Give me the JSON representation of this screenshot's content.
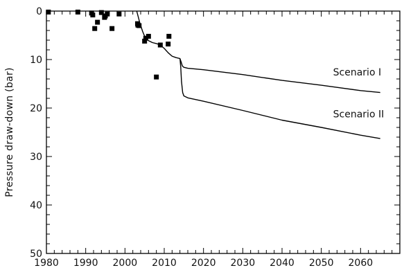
{
  "chart_data": {
    "type": "line",
    "title": "",
    "xlabel": "",
    "ylabel": "Pressure draw-down (bar)",
    "xlim": [
      1980,
      2070
    ],
    "ylim": [
      0,
      50
    ],
    "y_inverted": true,
    "grid": false,
    "x_ticks": [
      1980,
      1990,
      2000,
      2010,
      2020,
      2030,
      2040,
      2050,
      2060
    ],
    "y_ticks": [
      0,
      10,
      20,
      30,
      40,
      50
    ],
    "observations": {
      "marker": "square",
      "points": [
        [
          1980.5,
          0.2
        ],
        [
          1988,
          0.2
        ],
        [
          1991.5,
          0.4
        ],
        [
          1991.8,
          0.8
        ],
        [
          1992.3,
          3.6
        ],
        [
          1993,
          2.3
        ],
        [
          1994,
          0.3
        ],
        [
          1994.8,
          1.3
        ],
        [
          1995,
          1.0
        ],
        [
          1995.5,
          0.6
        ],
        [
          1996.7,
          3.6
        ],
        [
          1998.5,
          0.6
        ],
        [
          2003.2,
          2.6
        ],
        [
          2003.6,
          3.0
        ],
        [
          2003.3,
          2.9
        ],
        [
          2005,
          6.2
        ],
        [
          2005.3,
          5.6
        ],
        [
          2006,
          5.2
        ],
        [
          2008,
          13.6
        ],
        [
          2009,
          7.0
        ],
        [
          2011.2,
          5.2
        ],
        [
          2011,
          6.8
        ]
      ]
    },
    "series": [
      {
        "values": [
          [
            2003,
            0
          ],
          [
            2003.8,
            2.5
          ],
          [
            2004.5,
            4.2
          ],
          [
            2005,
            5.2
          ],
          [
            2006,
            6.1
          ],
          [
            2007,
            6.5
          ],
          [
            2008,
            6.7
          ],
          [
            2009,
            7.0
          ],
          [
            2010,
            7.7
          ],
          [
            2011,
            8.6
          ],
          [
            2012,
            9.3
          ],
          [
            2013,
            9.6
          ],
          [
            2014,
            9.8
          ],
          [
            2014.3,
            10.5
          ],
          [
            2014.6,
            11.3
          ],
          [
            2015,
            11.6
          ],
          [
            2016,
            11.8
          ],
          [
            2020,
            12.1
          ],
          [
            2030,
            13.1
          ],
          [
            2040,
            14.3
          ],
          [
            2050,
            15.3
          ],
          [
            2060,
            16.4
          ],
          [
            2065,
            16.8
          ]
        ]
      },
      {
        "values": [
          [
            2014,
            9.8
          ],
          [
            2014.2,
            11.5
          ],
          [
            2014.4,
            14.5
          ],
          [
            2014.7,
            16.8
          ],
          [
            2015,
            17.5
          ],
          [
            2016,
            17.9
          ],
          [
            2020,
            18.6
          ],
          [
            2030,
            20.5
          ],
          [
            2040,
            22.5
          ],
          [
            2050,
            24.0
          ],
          [
            2060,
            25.6
          ],
          [
            2065,
            26.3
          ]
        ]
      }
    ],
    "annotations": [
      {
        "text": "Scenario I",
        "x": 2053,
        "y": 13.3
      },
      {
        "text": "Scenario II",
        "x": 2053,
        "y": 21.9
      }
    ]
  }
}
